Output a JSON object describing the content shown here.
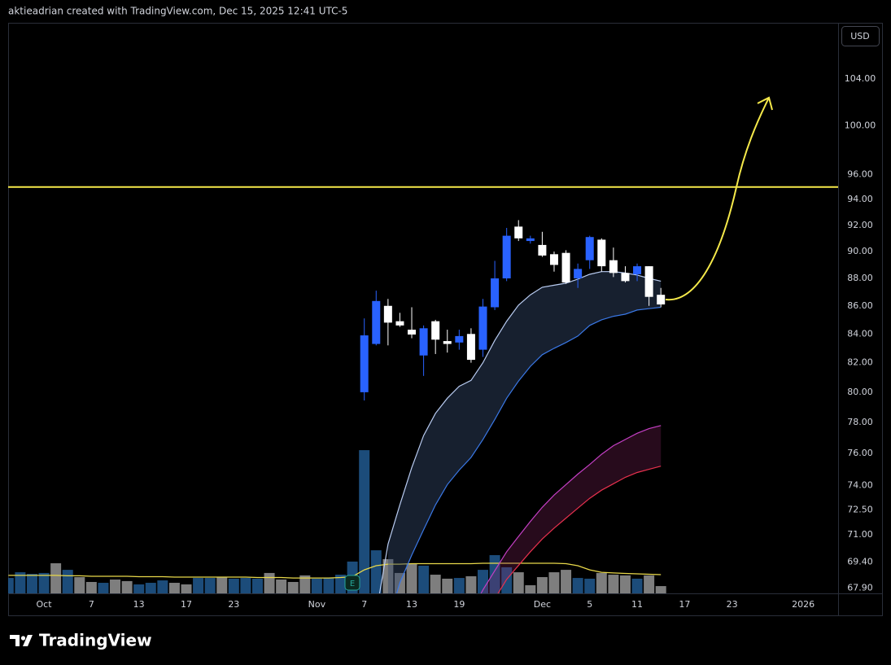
{
  "header": "aktieadrian created with TradingView.com, Dec 15, 2025 12:41 UTC-5",
  "logo": "TradingView",
  "chart_data": {
    "type": "candlestick",
    "currency": "USD",
    "categories": [
      null,
      null,
      null,
      "Oct",
      null,
      null,
      null,
      "7",
      null,
      null,
      null,
      "13",
      null,
      null,
      null,
      "17",
      null,
      null,
      null,
      "23",
      null,
      null,
      null,
      null,
      null,
      null,
      "Nov",
      null,
      null,
      null,
      "7",
      null,
      null,
      null,
      "13",
      null,
      null,
      null,
      "19",
      null,
      null,
      null,
      null,
      null,
      null,
      "Dec",
      null,
      null,
      null,
      "5",
      null,
      null,
      null,
      "11",
      null,
      null,
      null,
      "17",
      null,
      null,
      null,
      "23",
      null,
      null,
      null,
      null,
      null,
      "2026"
    ],
    "open": [
      null,
      null,
      null,
      null,
      null,
      null,
      null,
      null,
      null,
      null,
      null,
      null,
      null,
      null,
      null,
      null,
      null,
      null,
      null,
      null,
      null,
      null,
      null,
      null,
      null,
      null,
      null,
      null,
      null,
      null,
      80.0,
      83.3,
      86.0,
      84.9,
      84.3,
      82.5,
      84.9,
      83.5,
      83.4,
      84.0,
      82.9,
      85.9,
      88.0,
      91.9,
      90.8,
      90.5,
      89.8,
      89.9,
      88.0,
      89.35,
      90.9,
      89.35,
      88.4,
      88.3,
      88.9,
      86.8,
      null,
      null,
      null,
      null,
      null,
      null,
      null,
      null,
      null,
      null,
      null,
      null
    ],
    "high": [
      null,
      null,
      null,
      null,
      null,
      null,
      null,
      null,
      null,
      null,
      null,
      null,
      null,
      null,
      null,
      null,
      null,
      null,
      null,
      null,
      null,
      null,
      null,
      null,
      null,
      null,
      null,
      null,
      null,
      null,
      85.1,
      87.1,
      86.5,
      85.5,
      85.9,
      84.6,
      85.0,
      84.3,
      84.3,
      84.4,
      86.5,
      89.3,
      91.8,
      92.4,
      91.2,
      91.5,
      90.0,
      90.1,
      89.1,
      91.2,
      91.0,
      90.3,
      88.9,
      89.1,
      88.9,
      87.3,
      null,
      null,
      null,
      null,
      null,
      null,
      null,
      null,
      null,
      null,
      null,
      null
    ],
    "low": [
      null,
      null,
      null,
      null,
      null,
      null,
      null,
      null,
      null,
      null,
      null,
      null,
      null,
      null,
      null,
      null,
      null,
      null,
      null,
      null,
      null,
      null,
      null,
      null,
      null,
      null,
      null,
      null,
      null,
      null,
      79.45,
      83.2,
      83.2,
      84.5,
      83.7,
      81.1,
      82.6,
      82.7,
      82.9,
      82.0,
      82.4,
      85.7,
      87.8,
      90.8,
      90.6,
      89.6,
      88.5,
      87.6,
      87.3,
      88.7,
      88.5,
      88.1,
      87.7,
      87.8,
      86.0,
      85.9,
      null,
      null,
      null,
      null,
      null,
      null,
      null,
      null,
      null,
      null,
      null,
      null
    ],
    "close": [
      null,
      null,
      null,
      null,
      null,
      null,
      null,
      null,
      null,
      null,
      null,
      null,
      null,
      null,
      null,
      null,
      null,
      null,
      null,
      null,
      null,
      null,
      null,
      null,
      null,
      null,
      null,
      null,
      null,
      null,
      83.9,
      86.35,
      84.8,
      84.6,
      83.96,
      84.4,
      83.6,
      83.3,
      83.85,
      82.2,
      85.95,
      88.0,
      91.2,
      91.0,
      91.0,
      89.7,
      89.0,
      87.7,
      88.7,
      91.1,
      88.9,
      88.4,
      87.8,
      88.9,
      86.65,
      86.1,
      null,
      null,
      null,
      null,
      null,
      null,
      null,
      null,
      null,
      null,
      null,
      null
    ],
    "up_color": "#2962ff",
    "down_color": "#ffffff",
    "ylim": [
      67.6,
      109.0
    ],
    "log_scale": true,
    "yticks": [
      {
        "value": 104,
        "label": "104.00"
      },
      {
        "value": 100,
        "label": "100.00"
      },
      {
        "value": 96,
        "label": "96.00"
      },
      {
        "value": 94,
        "label": "94.00"
      },
      {
        "value": 92,
        "label": "92.00"
      },
      {
        "value": 90,
        "label": "90.00"
      },
      {
        "value": 88,
        "label": "88.00"
      },
      {
        "value": 86,
        "label": "86.00"
      },
      {
        "value": 84,
        "label": "84.00"
      },
      {
        "value": 82,
        "label": "82.00"
      },
      {
        "value": 80,
        "label": "80.00"
      },
      {
        "value": 78,
        "label": "78.00"
      },
      {
        "value": 76,
        "label": "76.00"
      },
      {
        "value": 74,
        "label": "74.00"
      },
      {
        "value": 72.5,
        "label": "72.50"
      },
      {
        "value": 71,
        "label": "71.00"
      },
      {
        "value": 69.4,
        "label": "69.40"
      },
      {
        "value": 67.9,
        "label": "67.90"
      }
    ],
    "bands": [
      {
        "fill": "rgba(52,72,104,0.45)",
        "upper": {
          "color": "#b9ccf2",
          "values": [
            null,
            null,
            null,
            null,
            null,
            null,
            null,
            null,
            null,
            null,
            null,
            null,
            null,
            null,
            null,
            null,
            null,
            null,
            null,
            null,
            null,
            null,
            null,
            null,
            null,
            null,
            null,
            null,
            null,
            null,
            null,
            66.5,
            70.45,
            72.8,
            75.1,
            77.15,
            78.6,
            79.6,
            80.4,
            80.8,
            82.0,
            83.55,
            84.9,
            86.05,
            86.8,
            87.35,
            87.5,
            87.65,
            87.95,
            88.3,
            88.5,
            88.5,
            88.4,
            88.25,
            88.0,
            87.8,
            null,
            null,
            null,
            null,
            null,
            null,
            null,
            null,
            null,
            null,
            null,
            null
          ]
        },
        "lower": {
          "color": "#3a78e6",
          "values": [
            null,
            null,
            null,
            null,
            null,
            null,
            null,
            null,
            null,
            null,
            null,
            null,
            null,
            null,
            null,
            null,
            null,
            null,
            null,
            null,
            null,
            null,
            null,
            null,
            null,
            null,
            null,
            null,
            null,
            null,
            null,
            null,
            66.0,
            68.2,
            69.8,
            71.3,
            72.8,
            74.05,
            74.95,
            75.75,
            76.9,
            78.2,
            79.6,
            80.75,
            81.75,
            82.55,
            83.0,
            83.4,
            83.85,
            84.6,
            85.0,
            85.25,
            85.4,
            85.7,
            85.8,
            85.9,
            null,
            null,
            null,
            null,
            null,
            null,
            null,
            null,
            null,
            null,
            null,
            null
          ]
        }
      },
      {
        "fill": "rgba(140,40,100,0.28)",
        "upper": {
          "color": "#c43fc4",
          "values": [
            null,
            null,
            null,
            null,
            null,
            null,
            null,
            null,
            null,
            null,
            null,
            null,
            null,
            null,
            null,
            null,
            null,
            null,
            null,
            null,
            null,
            null,
            null,
            null,
            null,
            null,
            null,
            null,
            null,
            null,
            null,
            null,
            null,
            null,
            null,
            null,
            null,
            null,
            null,
            66.5,
            67.8,
            68.9,
            70.0,
            70.9,
            71.8,
            72.65,
            73.4,
            74.05,
            74.7,
            75.3,
            75.95,
            76.5,
            76.9,
            77.3,
            77.6,
            77.8,
            null,
            null,
            null,
            null,
            null,
            null,
            null,
            null,
            null,
            null,
            null,
            null
          ]
        },
        "lower": {
          "color": "#e8314e",
          "values": [
            null,
            null,
            null,
            null,
            null,
            null,
            null,
            null,
            null,
            null,
            null,
            null,
            null,
            null,
            null,
            null,
            null,
            null,
            null,
            null,
            null,
            null,
            null,
            null,
            null,
            null,
            null,
            null,
            null,
            null,
            null,
            null,
            null,
            null,
            null,
            null,
            null,
            null,
            null,
            null,
            66.0,
            67.3,
            68.4,
            69.2,
            70.0,
            70.75,
            71.4,
            72.0,
            72.6,
            73.2,
            73.7,
            74.1,
            74.5,
            74.8,
            75.0,
            75.2,
            null,
            null,
            null,
            null,
            null,
            null,
            null,
            null,
            null,
            null,
            null,
            null
          ]
        }
      }
    ],
    "hlines": [
      {
        "value": 95.0,
        "color": "#f5e94a"
      }
    ],
    "y2lim": [
      0,
      400
    ],
    "volume": {
      "axis": "y2",
      "values": [
        10.8,
        14.8,
        13.7,
        14.3,
        21.1,
        16.5,
        11.4,
        8.0,
        7.4,
        9.7,
        8.6,
        6.3,
        7.4,
        9.1,
        7.4,
        6.3,
        10.8,
        10.8,
        11.4,
        10.3,
        10.8,
        10.3,
        14.3,
        9.7,
        8.0,
        12.6,
        10.3,
        10.8,
        13.1,
        22.3,
        100.4,
        30.2,
        24.0,
        14.3,
        21.1,
        19.4,
        13.1,
        10.3,
        10.8,
        12.0,
        16.5,
        26.8,
        18.3,
        14.8,
        5.7,
        11.4,
        14.8,
        16.5,
        10.8,
        10.3,
        14.3,
        13.1,
        12.6,
        10.3,
        12.6,
        5.1,
        null,
        null,
        null,
        null,
        null,
        null,
        null,
        null,
        null,
        null,
        null,
        null
      ],
      "colors": [
        "#1f5487",
        "#1f5487",
        "#1f5487",
        "#1f5487",
        "#8c8c8c",
        "#1f5487",
        "#8c8c8c",
        "#8c8c8c",
        "#1f5487",
        "#8c8c8c",
        "#8c8c8c",
        "#1f5487",
        "#1f5487",
        "#1f5487",
        "#8c8c8c",
        "#8c8c8c",
        "#1f5487",
        "#1f5487",
        "#8c8c8c",
        "#1f5487",
        "#1f5487",
        "#1f5487",
        "#8c8c8c",
        "#8c8c8c",
        "#8c8c8c",
        "#8c8c8c",
        "#1f5487",
        "#1f5487",
        "#1f5487",
        "#1f5487",
        "#1f5487",
        "#1f5487",
        "#8c8c8c",
        "#8c8c8c",
        "#8c8c8c",
        "#1f5487",
        "#8c8c8c",
        "#8c8c8c",
        "#1f5487",
        "#8c8c8c",
        "#1f5487",
        "#1f5487",
        "#1f5487",
        "#8c8c8c",
        "#8c8c8c",
        "#8c8c8c",
        "#8c8c8c",
        "#8c8c8c",
        "#1f5487",
        "#1f5487",
        "#8c8c8c",
        "#8c8c8c",
        "#8c8c8c",
        "#1f5487",
        "#8c8c8c",
        "#8c8c8c",
        null,
        null,
        null,
        null,
        null,
        null,
        null,
        null,
        null,
        null,
        null,
        null
      ],
      "ma": {
        "color": "#e8d84a",
        "values": [
          12.6,
          12.6,
          12.6,
          12.6,
          12.6,
          12.3,
          12.3,
          12.0,
          12.0,
          12.0,
          12.0,
          11.7,
          11.7,
          11.7,
          11.4,
          11.4,
          11.4,
          11.4,
          11.4,
          11.4,
          11.4,
          11.1,
          11.1,
          11.1,
          10.8,
          10.8,
          10.8,
          10.8,
          11.1,
          11.7,
          16.5,
          19.4,
          20.5,
          20.5,
          20.8,
          20.8,
          20.8,
          20.8,
          20.8,
          20.8,
          21.1,
          21.1,
          21.1,
          21.1,
          21.1,
          21.1,
          21.1,
          20.8,
          19.4,
          16.5,
          14.8,
          14.3,
          14.0,
          13.7,
          13.4,
          13.1,
          null,
          null,
          null,
          null,
          null,
          null,
          null,
          null,
          null,
          null,
          null,
          null
        ]
      }
    },
    "earnings_marker": "E"
  }
}
